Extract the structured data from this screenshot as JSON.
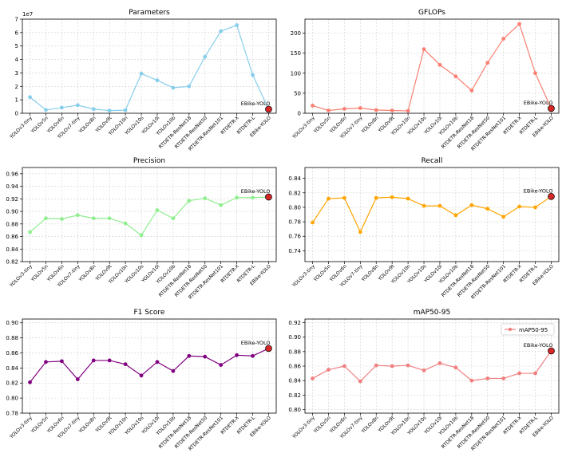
{
  "figure": {
    "models": [
      "YOLOv3-tiny",
      "YOLOv5n",
      "YOLOv6n",
      "YOLOv7-tiny",
      "YOLOv8n",
      "YOLOv9t",
      "YOLOv10n",
      "YOLOv10s",
      "YOLOv10l",
      "YOLOv10b",
      "RTDETR-ResNet18",
      "RTDETR-ResNet50",
      "RTDETR-ResNet101",
      "RTDETR-X",
      "RTDETR-L",
      "EBike-YOLO"
    ],
    "highlight_label": "EBike-YOLO",
    "highlight_color": "#d62728"
  },
  "chart_data": [
    {
      "type": "line",
      "title": "Parameters",
      "color": "#87ceeb",
      "scale_label": "1e7",
      "ylim": [
        0,
        70000000
      ],
      "yticks": [
        0,
        10000000,
        20000000,
        30000000,
        40000000,
        50000000,
        60000000,
        70000000
      ],
      "yticklabels": [
        "0",
        "1",
        "2",
        "3",
        "4",
        "5",
        "6",
        "7"
      ],
      "values": [
        12000000,
        2500000,
        4200000,
        6000000,
        3100000,
        2000000,
        2300000,
        29500000,
        24500000,
        19000000,
        20000000,
        42000000,
        61000000,
        65500000,
        28500000,
        3000000
      ],
      "legend": null
    },
    {
      "type": "line",
      "title": "GFLOPs",
      "color": "#fa8072",
      "scale_label": "",
      "ylim": [
        0,
        235
      ],
      "yticks": [
        0,
        50,
        100,
        150,
        200
      ],
      "yticklabels": [
        "0",
        "50",
        "100",
        "150",
        "200"
      ],
      "values": [
        19,
        7,
        11,
        13,
        8,
        7,
        6,
        160,
        121,
        92,
        57,
        126,
        186,
        223,
        100,
        12
      ],
      "legend": null
    },
    {
      "type": "line",
      "title": "Precision",
      "color": "#90ee90",
      "scale_label": "",
      "ylim": [
        0.82,
        0.97
      ],
      "yticks": [
        0.82,
        0.84,
        0.86,
        0.88,
        0.9,
        0.92,
        0.94,
        0.96
      ],
      "yticklabels": [
        "0.82",
        "0.84",
        "0.86",
        "0.88",
        "0.90",
        "0.92",
        "0.94",
        "0.96"
      ],
      "values": [
        0.867,
        0.889,
        0.888,
        0.894,
        0.889,
        0.889,
        0.881,
        0.862,
        0.902,
        0.889,
        0.917,
        0.921,
        0.91,
        0.922,
        0.922,
        0.923
      ],
      "legend": null
    },
    {
      "type": "line",
      "title": "Recall",
      "color": "#ffa500",
      "scale_label": "",
      "ylim": [
        0.725,
        0.855
      ],
      "yticks": [
        0.74,
        0.76,
        0.78,
        0.8,
        0.82,
        0.84
      ],
      "yticklabels": [
        "0.74",
        "0.76",
        "0.78",
        "0.80",
        "0.82",
        "0.84"
      ],
      "values": [
        0.779,
        0.812,
        0.813,
        0.766,
        0.813,
        0.814,
        0.812,
        0.802,
        0.802,
        0.789,
        0.803,
        0.798,
        0.787,
        0.801,
        0.8,
        0.815
      ],
      "legend": null
    },
    {
      "type": "line",
      "title": "F1 Score",
      "color": "#800080",
      "scale_label": "",
      "ylim": [
        0.78,
        0.905
      ],
      "yticks": [
        0.78,
        0.8,
        0.82,
        0.84,
        0.86,
        0.88,
        0.9
      ],
      "yticklabels": [
        "0.78",
        "0.80",
        "0.82",
        "0.84",
        "0.86",
        "0.88",
        "0.90"
      ],
      "values": [
        0.821,
        0.848,
        0.849,
        0.825,
        0.85,
        0.85,
        0.845,
        0.83,
        0.848,
        0.836,
        0.856,
        0.855,
        0.844,
        0.857,
        0.856,
        0.866
      ],
      "legend": null
    },
    {
      "type": "line",
      "title": "mAP50-95",
      "color": "#f08080",
      "scale_label": "",
      "ylim": [
        0.795,
        0.925
      ],
      "yticks": [
        0.8,
        0.82,
        0.84,
        0.86,
        0.88,
        0.9,
        0.92
      ],
      "yticklabels": [
        "0.80",
        "0.82",
        "0.84",
        "0.86",
        "0.88",
        "0.90",
        "0.92"
      ],
      "values": [
        0.843,
        0.855,
        0.86,
        0.839,
        0.861,
        0.86,
        0.861,
        0.854,
        0.864,
        0.858,
        0.84,
        0.843,
        0.843,
        0.85,
        0.85,
        0.881
      ],
      "legend": "mAP50-95"
    }
  ]
}
